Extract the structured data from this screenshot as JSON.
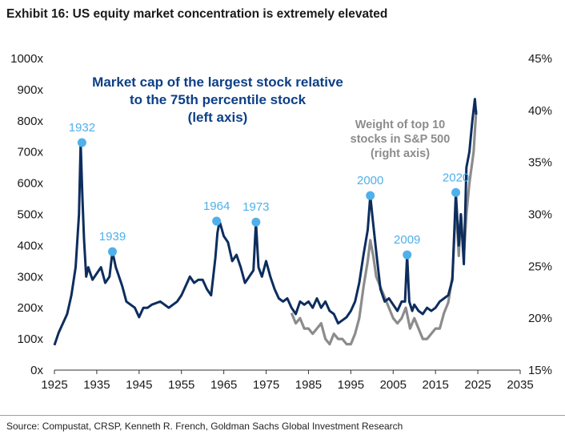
{
  "title": "Exhibit 16: US equity market concentration is extremely elevated",
  "source": "Source: Compustat, CRSP, Kenneth R. French, Goldman Sachs Global Investment Research",
  "colors": {
    "navy": "#0d2d5e",
    "gray": "#8c8c8c",
    "marker": "#4fb0ea",
    "annotation_blue": "#0d3f86",
    "annotation_gray": "#8c8c8c"
  },
  "chart_data": {
    "type": "line",
    "x_ticks": [
      "1925",
      "1935",
      "1945",
      "1955",
      "1965",
      "1975",
      "1985",
      "1995",
      "2005",
      "2015",
      "2025",
      "2035"
    ],
    "xlim": [
      1925,
      2035
    ],
    "y_left": {
      "ticks": [
        "0x",
        "100x",
        "200x",
        "300x",
        "400x",
        "500x",
        "600x",
        "700x",
        "800x",
        "900x",
        "1000x"
      ],
      "lim": [
        0,
        1000
      ],
      "label": "left axis"
    },
    "y_right": {
      "ticks": [
        "15%",
        "20%",
        "25%",
        "30%",
        "35%",
        "40%",
        "45%"
      ],
      "lim": [
        15,
        45
      ],
      "label": "right axis"
    },
    "annotations": {
      "navy_label": [
        "Market cap of the largest stock relative",
        "to the 75th percentile stock",
        "(left axis)"
      ],
      "gray_label": [
        "Weight of top 10",
        "stocks in S&P 500",
        "(right axis)"
      ]
    },
    "peaks": [
      {
        "label": "1932",
        "year": 1931.5,
        "value": 730
      },
      {
        "label": "1939",
        "year": 1938.7,
        "value": 380
      },
      {
        "label": "1964",
        "year": 1963.3,
        "value": 478
      },
      {
        "label": "1973",
        "year": 1972.6,
        "value": 475
      },
      {
        "label": "2000",
        "year": 1999.6,
        "value": 560
      },
      {
        "label": "2009",
        "year": 2008.3,
        "value": 370
      },
      {
        "label": "2020",
        "year": 2019.8,
        "value": 570
      }
    ],
    "series": [
      {
        "name": "Market cap of the largest stock relative to the 75th percentile stock",
        "axis": "left",
        "x": [
          1925,
          1926,
          1927,
          1928,
          1929,
          1930,
          1930.8,
          1931.2,
          1931.6,
          1932,
          1932.5,
          1933,
          1934,
          1935,
          1936,
          1937,
          1938,
          1938.7,
          1939.5,
          1940,
          1941,
          1942,
          1943,
          1944,
          1945,
          1946,
          1947,
          1948,
          1950,
          1952,
          1954,
          1955,
          1956,
          1957,
          1958,
          1959,
          1960,
          1961,
          1962,
          1963,
          1963.5,
          1964,
          1965,
          1966,
          1967,
          1968,
          1969,
          1970,
          1971,
          1972,
          1972.6,
          1973.2,
          1974,
          1975,
          1976,
          1977,
          1978,
          1979,
          1980,
          1981,
          1982,
          1983,
          1984,
          1985,
          1986,
          1987,
          1988,
          1989,
          1990,
          1991,
          1992,
          1993,
          1994,
          1995,
          1996,
          1997,
          1998,
          1999,
          1999.6,
          2000.2,
          2001,
          2002,
          2003,
          2004,
          2005,
          2006,
          2007,
          2007.8,
          2008.3,
          2008.8,
          2009.5,
          2010,
          2011,
          2012,
          2013,
          2014,
          2015,
          2016,
          2017,
          2018,
          2019,
          2019.8,
          2020.5,
          2021,
          2021.7,
          2022.3,
          2023,
          2023.7,
          2024.3,
          2024.6
        ],
        "values": [
          80,
          120,
          150,
          180,
          240,
          330,
          500,
          730,
          560,
          420,
          300,
          330,
          290,
          310,
          330,
          280,
          300,
          380,
          330,
          310,
          270,
          220,
          210,
          200,
          170,
          200,
          200,
          210,
          220,
          200,
          220,
          240,
          270,
          300,
          280,
          290,
          290,
          260,
          240,
          360,
          440,
          478,
          430,
          410,
          350,
          370,
          330,
          280,
          300,
          320,
          475,
          330,
          300,
          350,
          300,
          260,
          230,
          220,
          230,
          200,
          180,
          220,
          210,
          220,
          200,
          230,
          200,
          220,
          190,
          180,
          150,
          160,
          170,
          190,
          220,
          280,
          370,
          450,
          560,
          480,
          380,
          260,
          220,
          230,
          210,
          190,
          220,
          220,
          370,
          220,
          190,
          210,
          190,
          180,
          200,
          190,
          200,
          220,
          230,
          240,
          290,
          570,
          400,
          500,
          340,
          650,
          700,
          800,
          870,
          820
        ]
      },
      {
        "name": "Weight of top 10 stocks in S&P 500",
        "axis": "right",
        "x": [
          1981,
          1982,
          1983,
          1984,
          1985,
          1986,
          1987,
          1988,
          1989,
          1990,
          1991,
          1992,
          1993,
          1994,
          1995,
          1996,
          1997,
          1998,
          1999,
          1999.6,
          2000.3,
          2001,
          2002,
          2003,
          2004,
          2005,
          2006,
          2007,
          2008,
          2009,
          2010,
          2011,
          2012,
          2013,
          2014,
          2015,
          2016,
          2017,
          2018,
          2019,
          2019.8,
          2020.5,
          2021,
          2021.7,
          2022.3,
          2023,
          2024,
          2024.6
        ],
        "values": [
          20.5,
          19.5,
          20,
          19,
          19,
          18.5,
          19,
          19.5,
          18,
          17.5,
          18.5,
          18,
          18,
          17.5,
          17.5,
          18.5,
          20,
          23,
          25.5,
          27.5,
          26,
          24,
          23,
          22,
          21,
          20,
          19.5,
          20,
          21,
          19,
          20,
          19,
          18,
          18,
          18.5,
          19,
          19,
          20.5,
          21.5,
          24,
          31,
          26,
          30,
          26,
          30,
          33,
          36,
          40
        ]
      }
    ]
  }
}
